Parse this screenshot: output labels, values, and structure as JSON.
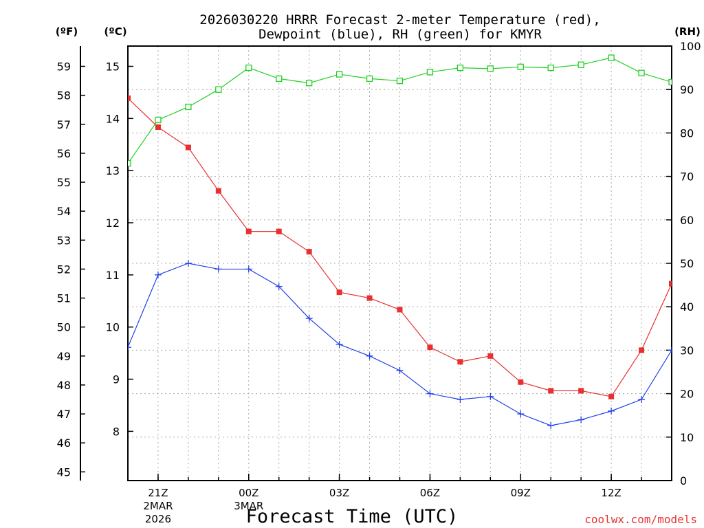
{
  "chart_data": {
    "type": "line",
    "title_line1": "2026030220 HRRR Forecast 2-meter Temperature (red),",
    "title_line2": "Dewpoint (blue), RH (green) for KMYR",
    "xlabel": "Forecast Time (UTC)",
    "credit": "coolwx.com/models",
    "unit_f": "(ºF)",
    "unit_c": "(ºC)",
    "unit_rh": "(RH)",
    "x_hours_utc": [
      20,
      21,
      22,
      23,
      24,
      25,
      26,
      27,
      28,
      29,
      30,
      31,
      32,
      33,
      34,
      35,
      36,
      37,
      38
    ],
    "x_range": [
      20,
      38
    ],
    "x_ticks": [
      {
        "hour": 21,
        "label": "21Z",
        "sub1": "2MAR",
        "sub2": "2026"
      },
      {
        "hour": 24,
        "label": "00Z",
        "sub1": "3MAR",
        "sub2": ""
      },
      {
        "hour": 27,
        "label": "03Z",
        "sub1": "",
        "sub2": ""
      },
      {
        "hour": 30,
        "label": "06Z",
        "sub1": "",
        "sub2": ""
      },
      {
        "hour": 33,
        "label": "09Z",
        "sub1": "",
        "sub2": ""
      },
      {
        "hour": 36,
        "label": "12Z",
        "sub1": "",
        "sub2": ""
      }
    ],
    "y_left_f": {
      "ticks": [
        45,
        46,
        47,
        48,
        49,
        50,
        51,
        52,
        53,
        54,
        55,
        56,
        57,
        58,
        59
      ]
    },
    "y_left_c": {
      "ticks": [
        8,
        9,
        10,
        11,
        12,
        13,
        14,
        15
      ]
    },
    "y_right_rh": {
      "range": [
        0,
        100
      ],
      "ticks": [
        0,
        10,
        20,
        30,
        40,
        50,
        60,
        70,
        80,
        90,
        100
      ]
    },
    "temp_range_f": [
      44.7,
      59.7
    ],
    "series": [
      {
        "name": "Temperature (°F)",
        "color": "#e83030",
        "marker": "filled-square",
        "axis": "F",
        "values": [
          57.9,
          56.9,
          56.2,
          54.7,
          53.3,
          53.3,
          52.6,
          51.2,
          51.0,
          50.6,
          49.3,
          48.8,
          49.0,
          48.1,
          47.8,
          47.8,
          47.6,
          49.2,
          51.5
        ]
      },
      {
        "name": "Dewpoint (°F)",
        "color": "#2040e8",
        "marker": "plus",
        "axis": "F",
        "values": [
          49.3,
          51.8,
          52.2,
          52.0,
          52.0,
          51.4,
          50.3,
          49.4,
          49.0,
          48.5,
          47.7,
          47.5,
          47.6,
          47.0,
          46.6,
          46.8,
          47.1,
          47.5,
          49.2
        ]
      },
      {
        "name": "RH (%)",
        "color": "#20d020",
        "marker": "open-square",
        "axis": "RH",
        "values": [
          73,
          83,
          86,
          90,
          95,
          92.5,
          91.5,
          93.5,
          92.5,
          92,
          94,
          95,
          94.8,
          95.2,
          95,
          95.7,
          97.3,
          93.8,
          91.7
        ]
      }
    ]
  }
}
